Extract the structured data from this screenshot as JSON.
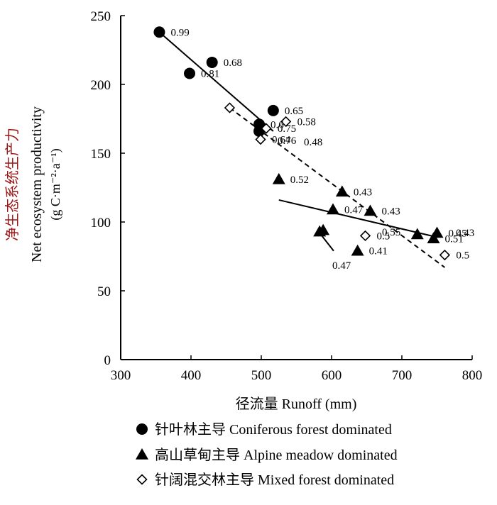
{
  "chart_data": {
    "type": "scatter",
    "xlabel": "径流量 Runoff (mm)",
    "ylabel_cn": "净生态系统生产力",
    "ylabel_en": "Net ecosystem productivity",
    "ylabel_unit": "(g C·m⁻²·a⁻¹)",
    "xlim": [
      300,
      800
    ],
    "ylim": [
      0,
      250
    ],
    "xticks": [
      "300",
      "400",
      "500",
      "600",
      "700",
      "800"
    ],
    "yticks": [
      "0",
      "50",
      "100",
      "150",
      "200",
      "250"
    ],
    "grid": false,
    "legend_position": "bottom",
    "series": [
      {
        "name": "针叶林主导 Coniferous forest dominated",
        "marker": "filled-circle",
        "color": "#000000",
        "points": [
          {
            "x": 355,
            "y": 238,
            "label": "0.99"
          },
          {
            "x": 398,
            "y": 208,
            "label": "0.81"
          },
          {
            "x": 430,
            "y": 216,
            "label": "0.68"
          },
          {
            "x": 497,
            "y": 171,
            "label": "0.6"
          },
          {
            "x": 497,
            "y": 166,
            "label": ""
          },
          {
            "x": 517,
            "y": 181,
            "label": "0.65"
          }
        ],
        "trendline": {
          "style": "solid",
          "x": [
            355,
            517
          ],
          "y": [
            238,
            166
          ]
        }
      },
      {
        "name": "高山草甸主导 Alpine meadow dominated",
        "marker": "filled-triangle",
        "color": "#000000",
        "points": [
          {
            "x": 525,
            "y": 131,
            "label": "0.52"
          },
          {
            "x": 583,
            "y": 93,
            "label": ""
          },
          {
            "x": 588,
            "y": 94,
            "label": ""
          },
          {
            "x": 602,
            "y": 109,
            "label": "0.47"
          },
          {
            "x": 615,
            "y": 122,
            "label": "0.43"
          },
          {
            "x": 637,
            "y": 79,
            "label": "0.41"
          },
          {
            "x": 655,
            "y": 108,
            "label": "0.43"
          },
          {
            "x": 722,
            "y": 91,
            "label": ""
          },
          {
            "x": 745,
            "y": 88,
            "label": "0.51"
          },
          {
            "x": 750,
            "y": 92,
            "label": "0.45"
          }
        ],
        "trendline": {
          "style": "solid",
          "x": [
            525,
            750
          ],
          "y": [
            116,
            89
          ]
        },
        "extra_segment": {
          "style": "solid",
          "x": [
            580,
            603
          ],
          "y": [
            94,
            79
          ]
        }
      },
      {
        "name": "针阔混交林主导 Mixed forest dominated",
        "marker": "open-diamond",
        "color": "#000000",
        "points": [
          {
            "x": 455,
            "y": 183,
            "label": ""
          },
          {
            "x": 499,
            "y": 160,
            "label": "0.64"
          },
          {
            "x": 507,
            "y": 168,
            "label": "0.75"
          },
          {
            "x": 535,
            "y": 173,
            "label": "0.58"
          },
          {
            "x": 648,
            "y": 90,
            "label": "0.5"
          },
          {
            "x": 761,
            "y": 76,
            "label": "0.5"
          }
        ],
        "trendline": {
          "style": "dashed",
          "x": [
            455,
            761
          ],
          "y": [
            183,
            67
          ]
        }
      }
    ],
    "extra_labels": [
      "0.76",
      "0.48",
      "0.55",
      "0.43",
      "0.47"
    ]
  }
}
